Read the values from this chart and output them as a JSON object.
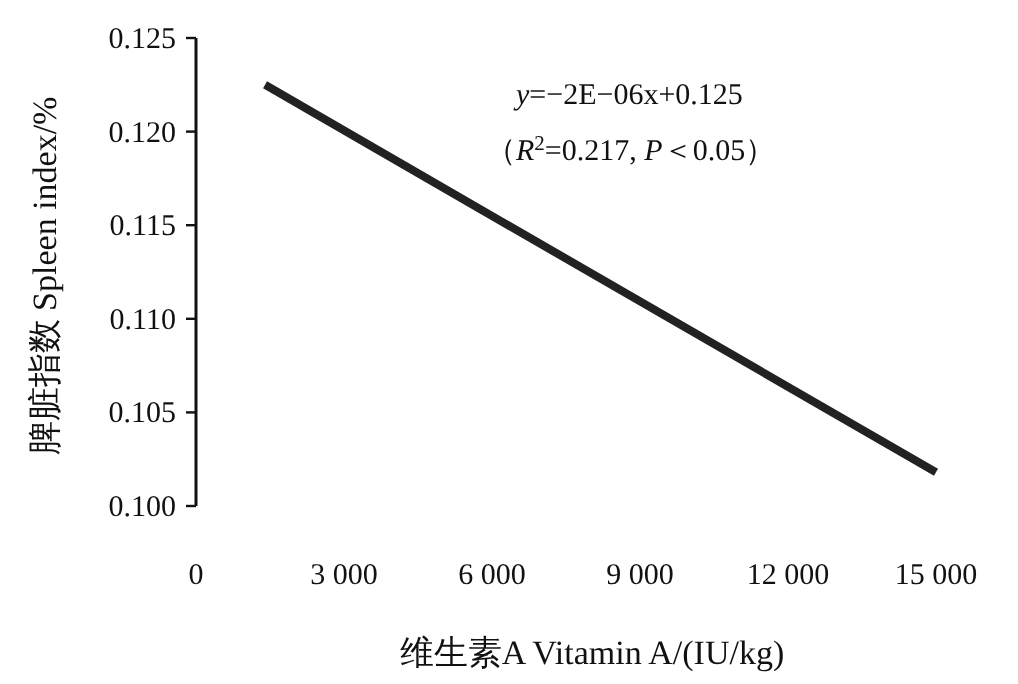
{
  "chart_data": {
    "type": "line",
    "xlabel": "维生素A Vitamin A/(IU/kg)",
    "ylabel": "脾脏指数 Spleen index/%",
    "x": [
      1400,
      15000
    ],
    "values": [
      0.1225,
      0.1018
    ],
    "color": "#222222",
    "line_style": "solid",
    "xlim": [
      0,
      15000
    ],
    "ylim": [
      0.1,
      0.125
    ],
    "xticks": [
      0,
      {
        "value": 3000,
        "label": "3 000"
      },
      {
        "value": 6000,
        "label": "6 000"
      },
      {
        "value": 9000,
        "label": "9 000"
      },
      {
        "value": 12000,
        "label": "12 000"
      },
      {
        "value": 15000,
        "label": "15 000"
      }
    ],
    "yticks": [
      {
        "value": 0.1,
        "label": "0.100"
      },
      {
        "value": 0.105,
        "label": "0.105"
      },
      {
        "value": 0.11,
        "label": "0.110"
      },
      {
        "value": 0.115,
        "label": "0.115"
      },
      {
        "value": 0.12,
        "label": "0.120"
      },
      {
        "value": 0.125,
        "label": "0.125"
      }
    ],
    "annotations": [
      "*y*=−2E−06x+0.125",
      "（*R*$^{2}$=0.217, *P*＜0.05）"
    ]
  }
}
